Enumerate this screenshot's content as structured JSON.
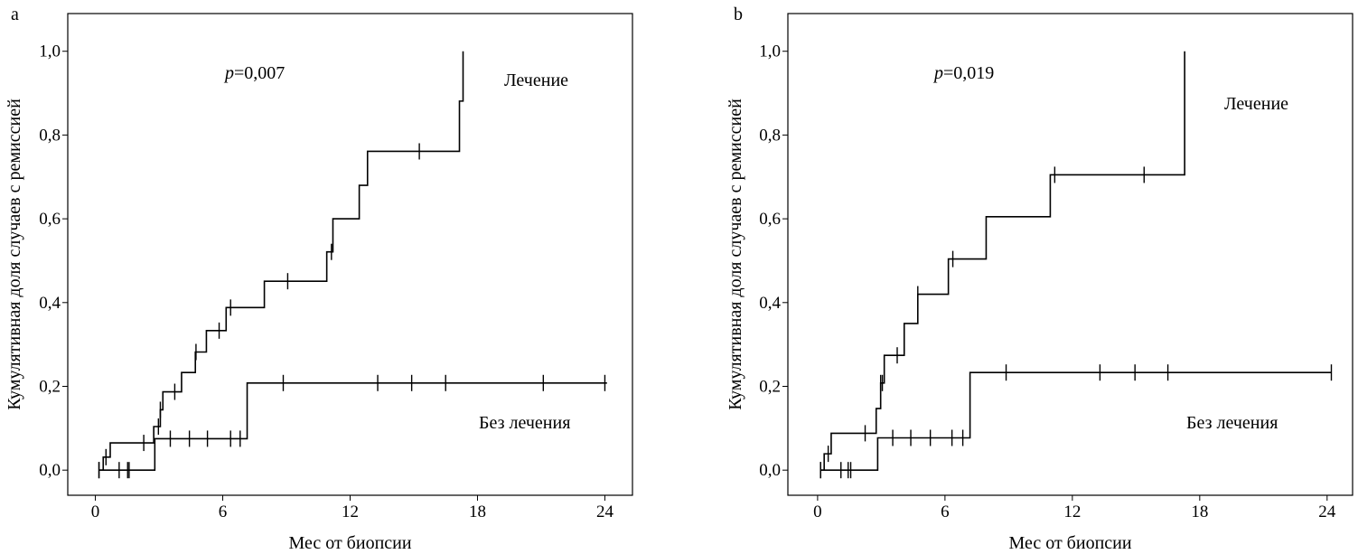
{
  "chart_data": [
    {
      "type": "line",
      "panel_label": "a",
      "xlabel": "Мес от биопсии",
      "ylabel": "Кумулятивная доля случаев с ремиссией",
      "xlim": [
        -1.3,
        25.3
      ],
      "ylim": [
        -0.06,
        1.09
      ],
      "xticks": [
        0,
        6,
        12,
        18,
        24
      ],
      "xtick_labels": [
        "0",
        "6",
        "12",
        "18",
        "24"
      ],
      "yticks": [
        0,
        0.2,
        0.4,
        0.6,
        0.8,
        1.0
      ],
      "ytick_labels": [
        "0,0",
        "0,2",
        "0,4",
        "0,6",
        "0,8",
        "1,0"
      ],
      "grid": false,
      "annotation": {
        "p_italic": "p",
        "p_value": "=0,007"
      },
      "series": [
        {
          "name": "Лечение",
          "steps": [
            [
              0.17,
              0
            ],
            [
              0.37,
              0.031
            ],
            [
              0.7,
              0.065
            ],
            [
              2.75,
              0.104
            ],
            [
              3.06,
              0.144
            ],
            [
              3.18,
              0.187
            ],
            [
              4.06,
              0.233
            ],
            [
              4.71,
              0.282
            ],
            [
              5.23,
              0.333
            ],
            [
              6.16,
              0.388
            ],
            [
              7.96,
              0.451
            ],
            [
              10.9,
              0.521
            ],
            [
              11.19,
              0.6
            ],
            [
              12.43,
              0.68
            ],
            [
              12.82,
              0.761
            ],
            [
              17.15,
              0.881
            ],
            [
              17.32,
              1.0
            ]
          ],
          "end": 17.32,
          "censored": [
            0.17,
            0.5,
            2.28,
            2.97,
            3.06,
            3.74,
            4.74,
            5.83,
            6.37,
            9.06,
            11.12,
            15.26
          ]
        },
        {
          "name": "Без лечения",
          "steps": [
            [
              0.17,
              0
            ],
            [
              2.8,
              0.075
            ],
            [
              7.15,
              0.208
            ]
          ],
          "end": 24.1,
          "censored": [
            0.17,
            1.12,
            1.52,
            1.59,
            3.53,
            4.43,
            5.28,
            6.37,
            6.82,
            8.85,
            13.3,
            14.9,
            16.5,
            21.1,
            24.0
          ]
        }
      ]
    },
    {
      "type": "line",
      "panel_label": "b",
      "xlabel": "Мес от биопсии",
      "ylabel": "Кумулятивная доля случаев с ремиссией",
      "xlim": [
        -1.4,
        25.2
      ],
      "ylim": [
        -0.06,
        1.09
      ],
      "xticks": [
        0,
        6,
        12,
        18,
        24
      ],
      "xtick_labels": [
        "0",
        "6",
        "12",
        "18",
        "24"
      ],
      "yticks": [
        0,
        0.2,
        0.4,
        0.6,
        0.8,
        1.0
      ],
      "ytick_labels": [
        "0,0",
        "0,2",
        "0,4",
        "0,6",
        "0,8",
        "1,0"
      ],
      "grid": false,
      "annotation": {
        "p_italic": "p",
        "p_value": "=0,019"
      },
      "series": [
        {
          "name": "Лечение",
          "steps": [
            [
              0.14,
              0
            ],
            [
              0.31,
              0.039
            ],
            [
              0.64,
              0.088
            ],
            [
              2.76,
              0.147
            ],
            [
              2.97,
              0.208
            ],
            [
              3.14,
              0.274
            ],
            [
              4.08,
              0.35
            ],
            [
              4.72,
              0.42
            ],
            [
              6.16,
              0.504
            ],
            [
              7.94,
              0.605
            ],
            [
              10.96,
              0.705
            ],
            [
              17.29,
              1.0
            ]
          ],
          "end": 17.29,
          "censored": [
            0.14,
            0.5,
            2.24,
            2.97,
            3.05,
            3.75,
            4.72,
            6.37,
            11.17,
            15.38
          ]
        },
        {
          "name": "Без лечения",
          "steps": [
            [
              0.14,
              0
            ],
            [
              2.83,
              0.077
            ],
            [
              7.18,
              0.233
            ]
          ],
          "end": 24.2,
          "censored": [
            0.14,
            1.1,
            1.44,
            1.56,
            3.54,
            4.39,
            5.31,
            6.33,
            6.84,
            8.88,
            13.3,
            14.95,
            16.5,
            24.2
          ]
        }
      ]
    }
  ]
}
